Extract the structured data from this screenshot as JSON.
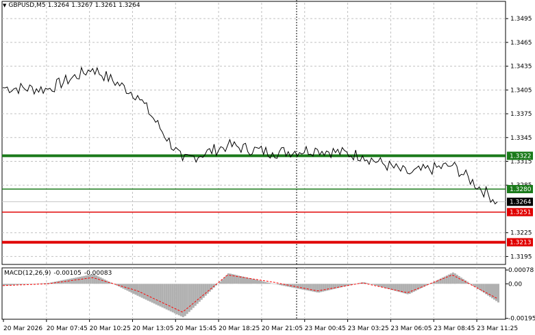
{
  "header": {
    "symbol": "GBPUSD,M5",
    "open": "1.3264",
    "high": "1.3267",
    "low": "1.3261",
    "close": "1.3264"
  },
  "macd": {
    "title": "MACD(12,26,9)",
    "main_value": "-0.00105",
    "signal_value": "-0.00083",
    "axis_labels": [
      "0.00078",
      "0.00",
      "-0.00195"
    ]
  },
  "price_axis": {
    "labels": [
      "1.3495",
      "1.3465",
      "1.3435",
      "1.3405",
      "1.3375",
      "1.3345",
      "1.3315",
      "1.3285",
      "1.3225",
      "1.3195"
    ]
  },
  "levels": [
    {
      "value": 1.3322,
      "label": "1.3322",
      "color": "#1a7a1a",
      "style": "thick"
    },
    {
      "value": 1.328,
      "label": "1.3280",
      "color": "#1a7a1a",
      "style": "thin"
    },
    {
      "value": 1.3251,
      "label": "1.3251",
      "color": "#e00000",
      "style": "thin"
    },
    {
      "value": 1.3213,
      "label": "1.3213",
      "color": "#e00000",
      "style": "thick"
    }
  ],
  "current_price": {
    "value": 1.3264,
    "label": "1.3264"
  },
  "time_axis": {
    "labels": [
      "20 Mar 2026",
      "20 Mar 07:45",
      "20 Mar 10:25",
      "20 Mar 13:05",
      "20 Mar 15:45",
      "20 Mar 18:25",
      "20 Mar 21:05",
      "23 Mar 00:45",
      "23 Mar 03:25",
      "23 Mar 06:05",
      "23 Mar 08:45",
      "23 Mar 11:25"
    ]
  },
  "colors": {
    "price_line": "#000000",
    "grid": "#c0c0c0",
    "histogram": "#b0b0b0",
    "signal": "#ff0000",
    "green": "#1a7a1a",
    "red": "#e00000"
  },
  "chart_data": {
    "type": "line",
    "title": "GBPUSD,M5",
    "x": [
      "20 Mar 2026",
      "20 Mar 07:45",
      "20 Mar 10:25",
      "20 Mar 13:05",
      "20 Mar 15:45",
      "20 Mar 18:25",
      "20 Mar 21:05",
      "23 Mar 00:45",
      "23 Mar 03:25",
      "23 Mar 06:05",
      "23 Mar 08:45",
      "23 Mar 11:25"
    ],
    "series": [
      {
        "values": [
          1.3408,
          1.3406,
          1.3432,
          1.3398,
          1.3316,
          1.3335,
          1.3326,
          1.333,
          1.3322,
          1.33,
          1.331,
          1.3264
        ]
      }
    ],
    "ylim": [
      1.3185,
      1.3515
    ],
    "grid": true,
    "horizontal_levels": [
      1.3322,
      1.328,
      1.3251,
      1.3213
    ],
    "macd": {
      "main": [
        -0.0001,
        5e-05,
        0.00055,
        -0.0007,
        -0.0019,
        0.0006,
        0.0,
        -0.0005,
        0.0001,
        -0.0006,
        0.00065,
        -0.00105
      ],
      "signal": [
        -0.0001,
        0.0,
        0.00035,
        -0.0004,
        -0.0016,
        0.0005,
        0.0001,
        -0.0004,
        5e-05,
        -0.0005,
        0.0005,
        -0.00083
      ],
      "ylim": [
        -0.002,
        0.0009
      ]
    }
  }
}
